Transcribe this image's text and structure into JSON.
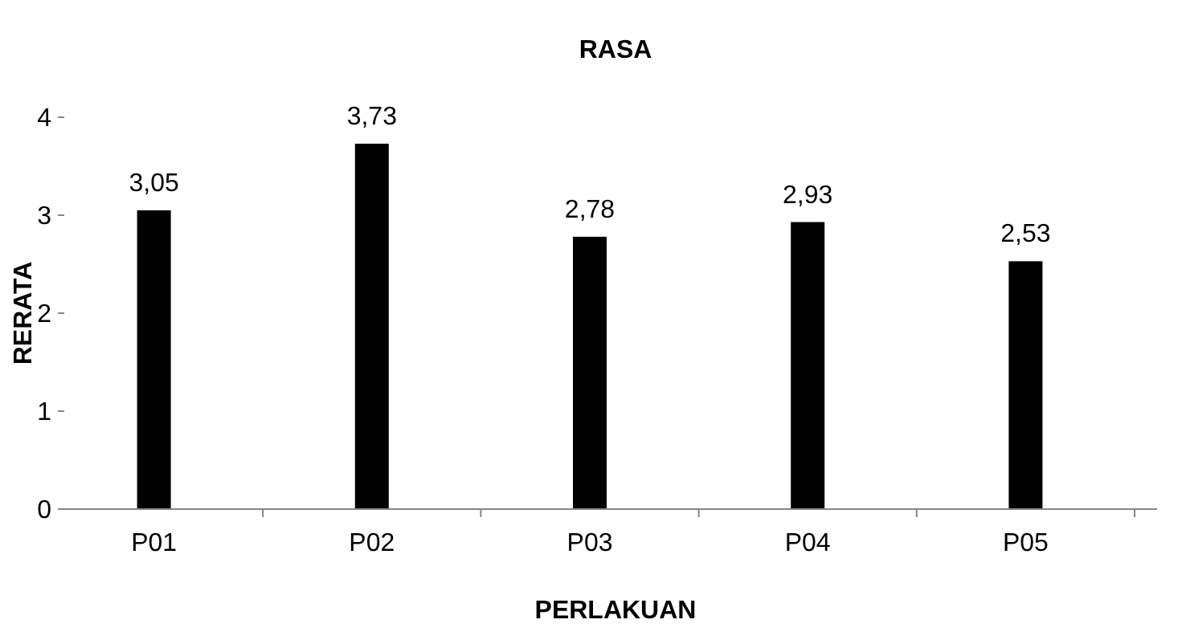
{
  "chart_data": {
    "type": "bar",
    "title": "RASA",
    "xlabel": "PERLAKUAN",
    "ylabel": "RERATA",
    "categories": [
      "P01",
      "P02",
      "P03",
      "P04",
      "P05"
    ],
    "values": [
      3.05,
      3.73,
      2.78,
      2.93,
      2.53
    ],
    "value_labels": [
      "3,05",
      "3,73",
      "2,78",
      "2,93",
      "2,53"
    ],
    "color": "#000000",
    "ylim": [
      0,
      4
    ],
    "yticks": [
      0,
      1,
      2,
      3,
      4
    ],
    "grid": false
  }
}
